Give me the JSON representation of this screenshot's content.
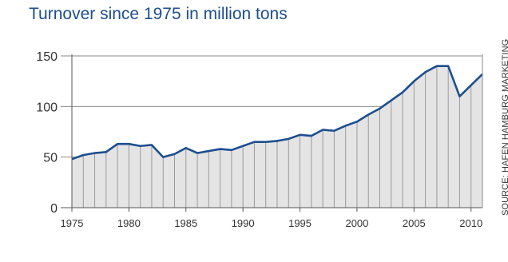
{
  "chart_data": {
    "type": "area",
    "title": "Turnover since 1975 in million tons",
    "source": "SOURCE: HAFEN HAMBURG MARKETING",
    "xlabel": "",
    "ylabel": "",
    "x": [
      1975,
      1976,
      1977,
      1978,
      1979,
      1980,
      1981,
      1982,
      1983,
      1984,
      1985,
      1986,
      1987,
      1988,
      1989,
      1990,
      1991,
      1992,
      1993,
      1994,
      1995,
      1996,
      1997,
      1998,
      1999,
      2000,
      2001,
      2002,
      2003,
      2004,
      2005,
      2006,
      2007,
      2008,
      2009,
      2010,
      2011
    ],
    "values": [
      48,
      52,
      54,
      55,
      63,
      63,
      61,
      62,
      50,
      53,
      59,
      54,
      56,
      58,
      57,
      61,
      65,
      65,
      66,
      68,
      72,
      71,
      77,
      76,
      81,
      85,
      92,
      98,
      106,
      114,
      125,
      134,
      140,
      140,
      110,
      121,
      132
    ],
    "xticks": [
      "1975",
      "1980",
      "1985",
      "1990",
      "1995",
      "2000",
      "2005",
      "2010"
    ],
    "yticks": [
      "0",
      "50",
      "100",
      "150"
    ],
    "xlim": [
      1975,
      2011
    ],
    "ylim": [
      0,
      150
    ],
    "grid": "horizontal",
    "colors": {
      "line": "#1d4e8f",
      "fill": "#e4e4e4",
      "bars": "#9a9a9a",
      "title": "#1d4e8f"
    }
  }
}
